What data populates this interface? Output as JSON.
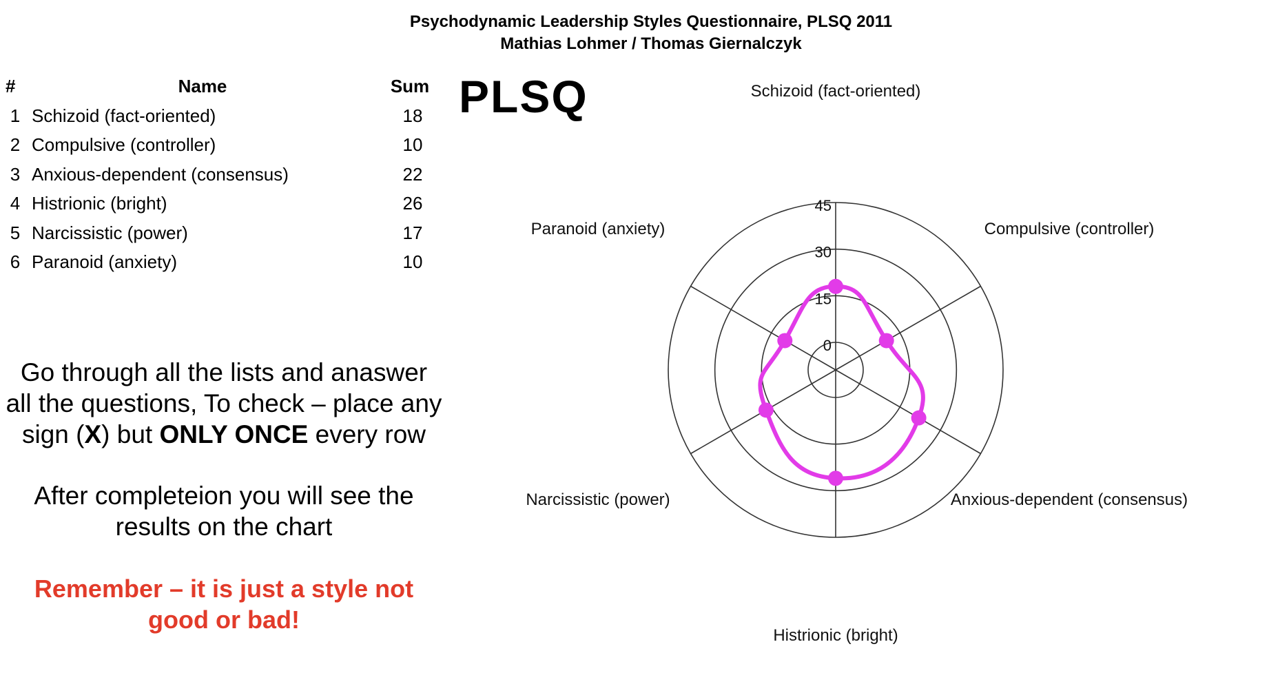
{
  "header": {
    "title": "Psychodynamic Leadership Styles Questionnaire, PLSQ 2011",
    "authors": "Mathias Lohmer / Thomas Giernalczyk"
  },
  "table": {
    "headers": {
      "num": "#",
      "name": "Name",
      "sum": "Sum"
    },
    "rows": [
      {
        "num": "1",
        "name": "Schizoid (fact-oriented)",
        "sum": "18"
      },
      {
        "num": "2",
        "name": "Compulsive (controller)",
        "sum": "10"
      },
      {
        "num": "3",
        "name": "Anxious-dependent (consensus)",
        "sum": "22"
      },
      {
        "num": "4",
        "name": "Histrionic (bright)",
        "sum": "26"
      },
      {
        "num": "5",
        "name": "Narcissistic (power)",
        "sum": "17"
      },
      {
        "num": "6",
        "name": "Paranoid (anxiety)",
        "sum": "10"
      }
    ]
  },
  "logo": "PLSQ",
  "instructions": {
    "line1": "Go through all the lists and anaswer",
    "line2": "all the questions, To check – place any",
    "line3_prefix": "sign (",
    "line3_bold": "X",
    "line3_mid": ") but ",
    "line3_bold2": "ONLY ONCE",
    "line3_suffix": " every row",
    "completion_line1": "After completeion you will see the",
    "completion_line2": "results on the chart",
    "warning_line1": "Remember – it is just a style not",
    "warning_line2": "good or bad!"
  },
  "chart_data": {
    "type": "radar",
    "axes": [
      "Schizoid (fact-oriented)",
      "Compulsive (controller)",
      "Anxious-dependent (consensus)",
      "Histrionic (bright)",
      "Narcissistic (power)",
      "Paranoid (anxiety)"
    ],
    "values": [
      18,
      10,
      22,
      26,
      17,
      10
    ],
    "rlim": [
      0,
      45
    ],
    "ticks": [
      "0",
      "15",
      "30",
      "45"
    ],
    "tick_values": [
      0,
      15,
      30,
      45
    ],
    "grid": true,
    "legend": "none",
    "series_color": "#e23be8"
  }
}
